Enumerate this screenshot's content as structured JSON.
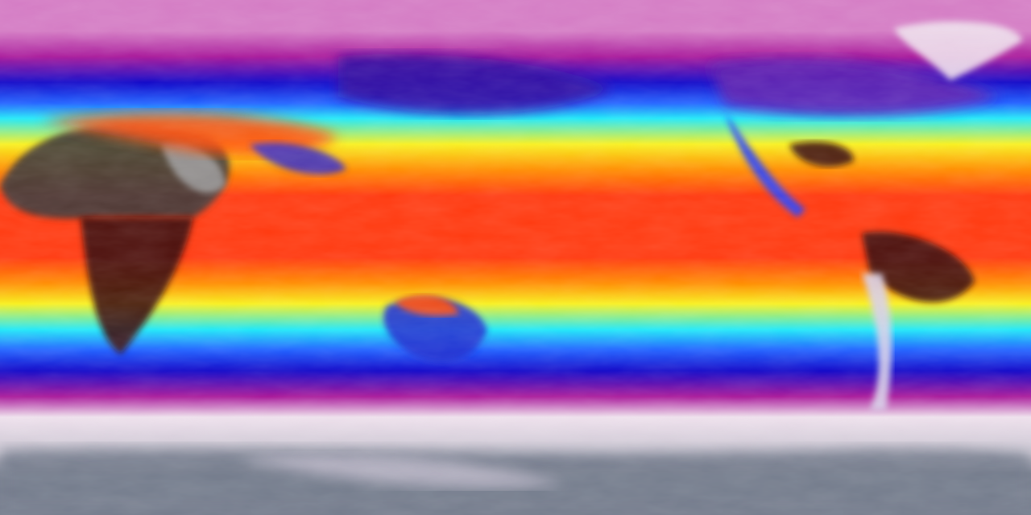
{
  "map": {
    "projection": "equirectangular",
    "extent": "global",
    "colormap": [
      "#d880c8",
      "#b02090",
      "#1010c0",
      "#20a0ff",
      "#20f0f0",
      "#f8f820",
      "#ffa000",
      "#ff4000",
      "#ff2000",
      "#600000",
      "#303030"
    ],
    "colors": {
      "polar_top": "#d47cc4",
      "magenta": "#a8189a",
      "deep_blue": "#1208c8",
      "blue": "#2060ff",
      "cyan": "#20e8f8",
      "yellow": "#f8f020",
      "orange": "#ff8c00",
      "red": "#ff3a10",
      "hot_dark": "#3a1010",
      "desert_grey": "#3c3838",
      "ice_white": "#eee0ec",
      "antarctic_grey": "#747c8c"
    }
  }
}
